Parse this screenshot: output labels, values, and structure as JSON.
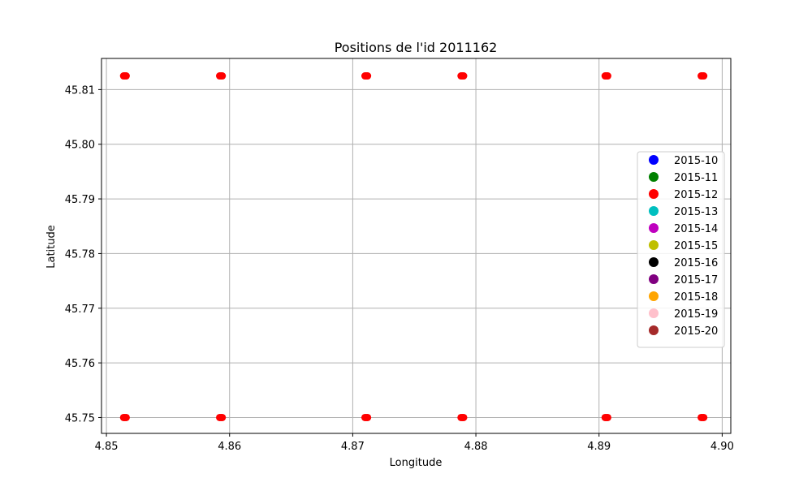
{
  "chart_data": {
    "type": "scatter",
    "title": "Positions de l'id 2011162",
    "xlabel": "Longitude",
    "ylabel": "Latitude",
    "xlim": [
      4.8496,
      4.9007
    ],
    "ylim": [
      45.7471,
      45.8157
    ],
    "xticks": [
      {
        "value": 4.85,
        "label": "4.85"
      },
      {
        "value": 4.86,
        "label": "4.86"
      },
      {
        "value": 4.87,
        "label": "4.87"
      },
      {
        "value": 4.88,
        "label": "4.88"
      },
      {
        "value": 4.89,
        "label": "4.89"
      },
      {
        "value": 4.9,
        "label": "4.90"
      }
    ],
    "yticks": [
      {
        "value": 45.75,
        "label": "45.75"
      },
      {
        "value": 45.76,
        "label": "45.76"
      },
      {
        "value": 45.77,
        "label": "45.77"
      },
      {
        "value": 45.78,
        "label": "45.78"
      },
      {
        "value": 45.79,
        "label": "45.79"
      },
      {
        "value": 45.8,
        "label": "45.80"
      },
      {
        "value": 45.81,
        "label": "45.81"
      }
    ],
    "grid": true,
    "legend_position": "right",
    "series": [
      {
        "name": "2015-10",
        "color": "#0000ff",
        "x": [],
        "y": []
      },
      {
        "name": "2015-11",
        "color": "#008000",
        "x": [],
        "y": []
      },
      {
        "name": "2015-12",
        "color": "#ff0000",
        "x": [
          4.8515,
          4.8593,
          4.8711,
          4.8789,
          4.8906,
          4.8984,
          4.8515,
          4.8593,
          4.8711,
          4.8789,
          4.8906,
          4.8984
        ],
        "y": [
          45.8125,
          45.8125,
          45.8125,
          45.8125,
          45.8125,
          45.8125,
          45.75,
          45.75,
          45.75,
          45.75,
          45.75,
          45.75
        ]
      },
      {
        "name": "2015-13",
        "color": "#00bfbf",
        "x": [],
        "y": []
      },
      {
        "name": "2015-14",
        "color": "#bf00bf",
        "x": [],
        "y": []
      },
      {
        "name": "2015-15",
        "color": "#bfbf00",
        "x": [],
        "y": []
      },
      {
        "name": "2015-16",
        "color": "#000000",
        "x": [],
        "y": []
      },
      {
        "name": "2015-17",
        "color": "#800080",
        "x": [],
        "y": []
      },
      {
        "name": "2015-18",
        "color": "#ffa500",
        "x": [],
        "y": []
      },
      {
        "name": "2015-19",
        "color": "#ffc0cb",
        "x": [],
        "y": []
      },
      {
        "name": "2015-20",
        "color": "#a52a2a",
        "x": [],
        "y": []
      }
    ]
  }
}
